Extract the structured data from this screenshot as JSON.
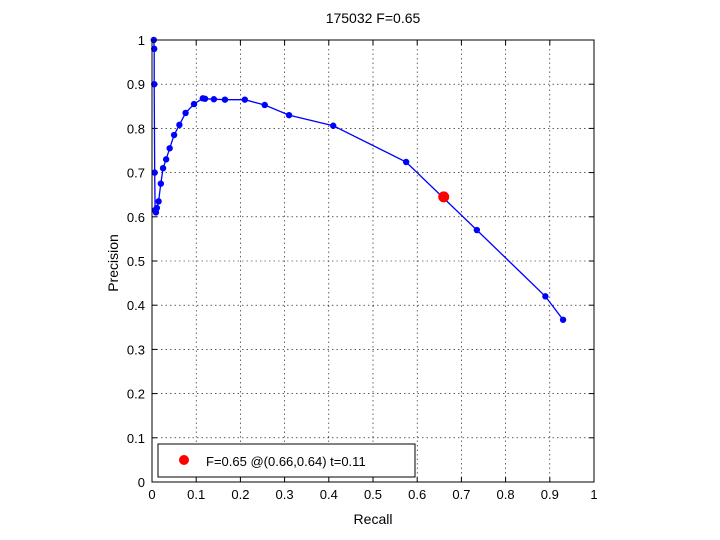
{
  "chart_data": {
    "type": "line",
    "title": "175032 F=0.65",
    "xlabel": "Recall",
    "ylabel": "Precision",
    "xlim": [
      0,
      1
    ],
    "ylim": [
      0,
      1
    ],
    "xticks": [
      "0",
      "0.1",
      "0.2",
      "0.3",
      "0.4",
      "0.5",
      "0.6",
      "0.7",
      "0.8",
      "0.9",
      "1"
    ],
    "yticks": [
      "0",
      "0.1",
      "0.2",
      "0.3",
      "0.4",
      "0.5",
      "0.6",
      "0.7",
      "0.8",
      "0.9",
      "1"
    ],
    "grid": true,
    "legend_position": "bottom-left",
    "series": [
      {
        "color": "#0000ff",
        "x": [
          0.004,
          0.005,
          0.005,
          0.006,
          0.007,
          0.009,
          0.011,
          0.015,
          0.02,
          0.025,
          0.032,
          0.04,
          0.05,
          0.062,
          0.076,
          0.095,
          0.115,
          0.12,
          0.14,
          0.165,
          0.21,
          0.255,
          0.31,
          0.41,
          0.575,
          0.735,
          0.89,
          0.93
        ],
        "y": [
          1.0,
          0.98,
          0.9,
          0.7,
          0.615,
          0.61,
          0.62,
          0.635,
          0.675,
          0.71,
          0.73,
          0.755,
          0.785,
          0.808,
          0.835,
          0.855,
          0.868,
          0.867,
          0.866,
          0.865,
          0.865,
          0.853,
          0.83,
          0.806,
          0.724,
          0.57,
          0.42,
          0.367
        ]
      }
    ],
    "highlight": {
      "color": "#ff0000",
      "x": 0.66,
      "y": 0.645,
      "label": "F=0.65 @(0.66,0.64) t=0.11"
    }
  }
}
